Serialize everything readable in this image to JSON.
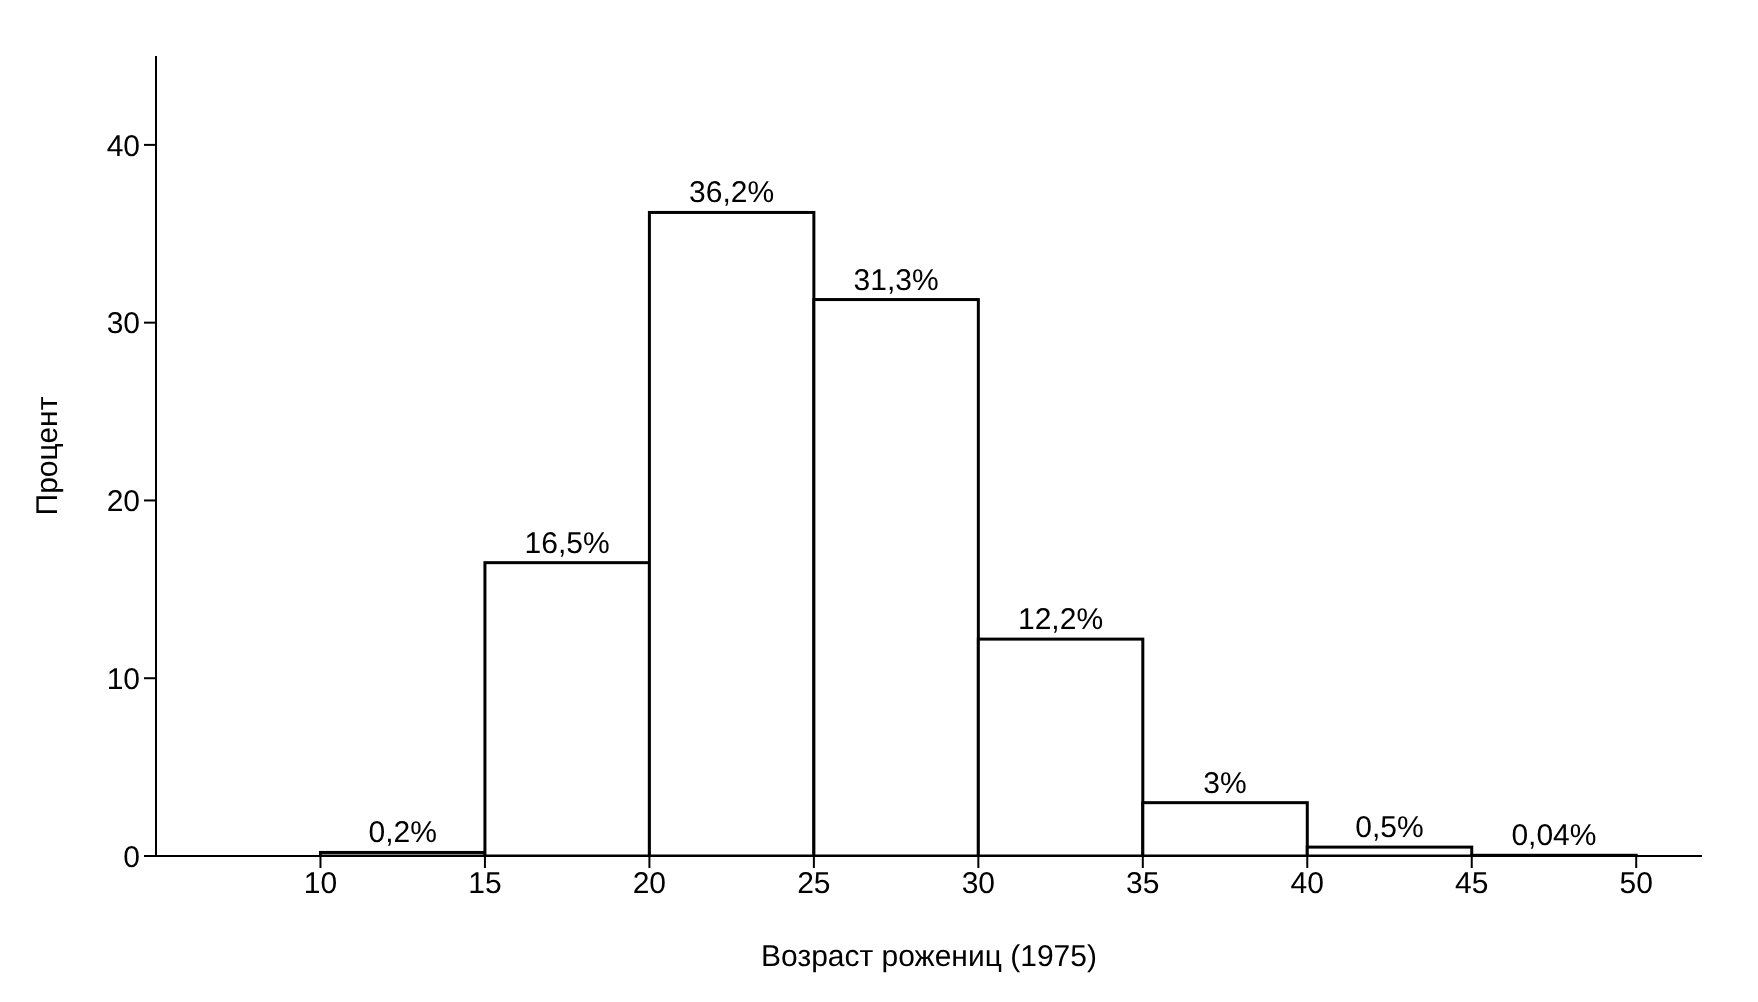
{
  "chart_data": {
    "type": "histogram",
    "xlabel": "Возраст рожениц (1975)",
    "ylabel": "Процент",
    "bins": [
      10,
      15,
      20,
      25,
      30,
      35,
      40,
      45,
      50
    ],
    "values": [
      0.2,
      16.5,
      36.2,
      31.3,
      12.2,
      3,
      0.5,
      0.04
    ],
    "value_labels": [
      "0,2%",
      "16,5%",
      "36,2%",
      "31,3%",
      "12,2%",
      "3%",
      "0,5%",
      "0,04%"
    ],
    "color": "#ffffff",
    "xlim": [
      5,
      52
    ],
    "xticks": [
      10,
      15,
      20,
      25,
      30,
      35,
      40,
      45,
      50
    ],
    "ylim": [
      0,
      45
    ],
    "yticks": [
      0,
      10,
      20,
      30,
      40
    ],
    "grid": false,
    "legend": false
  }
}
